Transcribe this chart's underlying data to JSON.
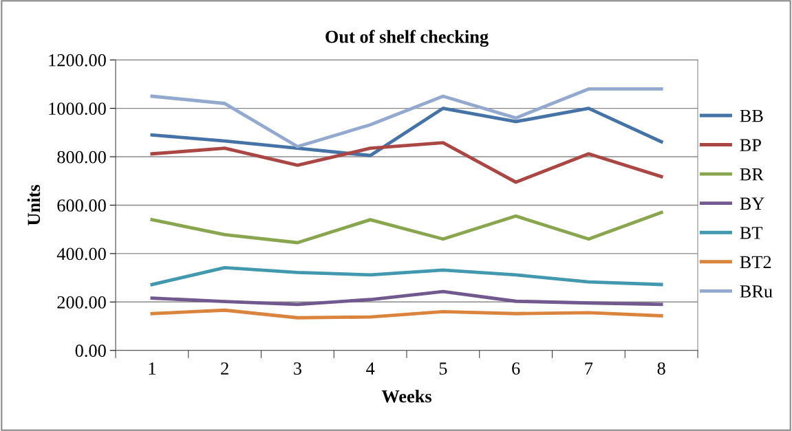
{
  "chart_data": {
    "type": "line",
    "title": "Out of shelf checking",
    "xlabel": "Weeks",
    "ylabel": "Units",
    "categories": [
      "1",
      "2",
      "3",
      "4",
      "5",
      "6",
      "7",
      "8"
    ],
    "ylim": [
      0,
      1200
    ],
    "yticks": [
      {
        "value": 0,
        "label": "0.00"
      },
      {
        "value": 200,
        "label": "200.00"
      },
      {
        "value": 400,
        "label": "400.00"
      },
      {
        "value": 600,
        "label": "600.00"
      },
      {
        "value": 800,
        "label": "800.00"
      },
      {
        "value": 1000,
        "label": "1000.00"
      },
      {
        "value": 1200,
        "label": "1200.00"
      }
    ],
    "grid": "y",
    "legend": "right",
    "marker": "none",
    "line_style": "solid",
    "series": [
      {
        "name": "BB",
        "color": "#4572a7",
        "values": [
          890,
          865,
          835,
          805,
          1000,
          945,
          1000,
          862
        ]
      },
      {
        "name": "BP",
        "color": "#aa4643",
        "values": [
          812,
          835,
          765,
          835,
          858,
          695,
          812,
          718
        ]
      },
      {
        "name": "BR",
        "color": "#89a54e",
        "values": [
          540,
          478,
          445,
          540,
          460,
          555,
          460,
          570
        ]
      },
      {
        "name": "BY",
        "color": "#71588f",
        "values": [
          216,
          202,
          190,
          210,
          243,
          203,
          196,
          190
        ]
      },
      {
        "name": "BT",
        "color": "#4198af",
        "values": [
          272,
          342,
          322,
          312,
          332,
          312,
          283,
          272
        ]
      },
      {
        "name": "BT2",
        "color": "#db843d",
        "values": [
          152,
          166,
          135,
          138,
          160,
          152,
          156,
          143
        ]
      },
      {
        "name": "BRu",
        "color": "#93a9cf",
        "values": [
          1050,
          1020,
          842,
          932,
          1050,
          960,
          1080,
          1080
        ]
      }
    ]
  }
}
